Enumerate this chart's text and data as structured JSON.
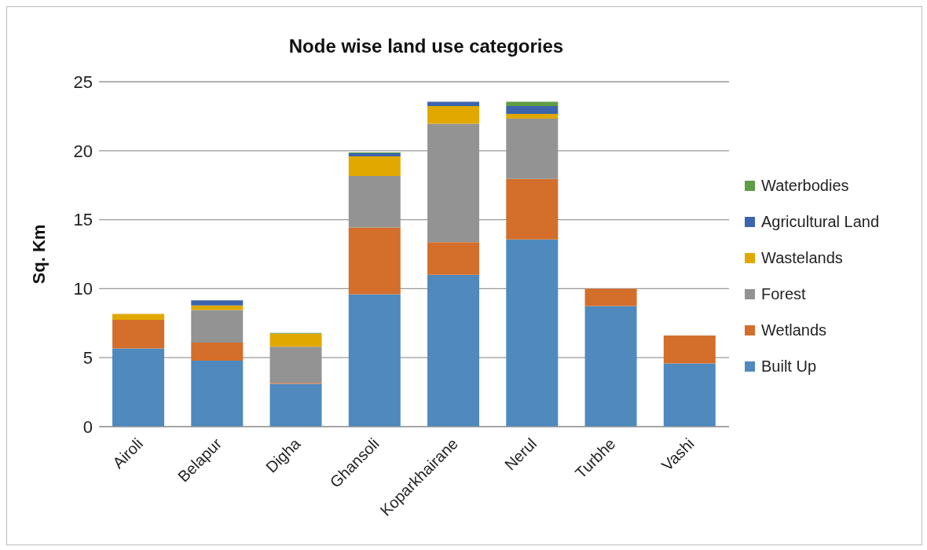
{
  "chart_data": {
    "type": "bar",
    "title": "Node wise land use categories",
    "ylabel": "Sq. Km",
    "categories": [
      "Airoli",
      "Belapur",
      "Digha",
      "Ghansoli",
      "Koparkhairane",
      "Nerul",
      "Turbhe",
      "Vashi"
    ],
    "stacked": true,
    "ylim": [
      0,
      25
    ],
    "yticks": [
      0,
      5,
      10,
      15,
      20,
      25
    ],
    "grid": "y",
    "legend": "right",
    "series": [
      {
        "name": "Built Up",
        "color": "#4f89bd",
        "values": [
          5.66,
          4.79,
          3.1,
          9.6,
          11.0,
          13.57,
          8.74,
          4.59
        ]
      },
      {
        "name": "Wetlands",
        "color": "#d36e2b",
        "values": [
          2.08,
          1.3,
          0.07,
          4.83,
          2.37,
          4.38,
          1.26,
          2.02
        ]
      },
      {
        "name": "Forest",
        "color": "#939393",
        "values": [
          null,
          2.36,
          2.62,
          3.73,
          8.59,
          4.37,
          null,
          null
        ]
      },
      {
        "name": "Wastelands",
        "color": "#e1a900",
        "values": [
          0.43,
          0.33,
          0.95,
          1.43,
          1.28,
          0.35,
          null,
          null
        ]
      },
      {
        "name": "Agricultural Land",
        "color": "#3d65ad",
        "values": [
          null,
          0.37,
          null,
          0.23,
          0.31,
          0.57,
          null,
          null
        ]
      },
      {
        "name": "Waterbodies",
        "color": "#5e9d45",
        "values": [
          null,
          null,
          0.05,
          0.05,
          null,
          0.31,
          null,
          null
        ]
      }
    ]
  }
}
